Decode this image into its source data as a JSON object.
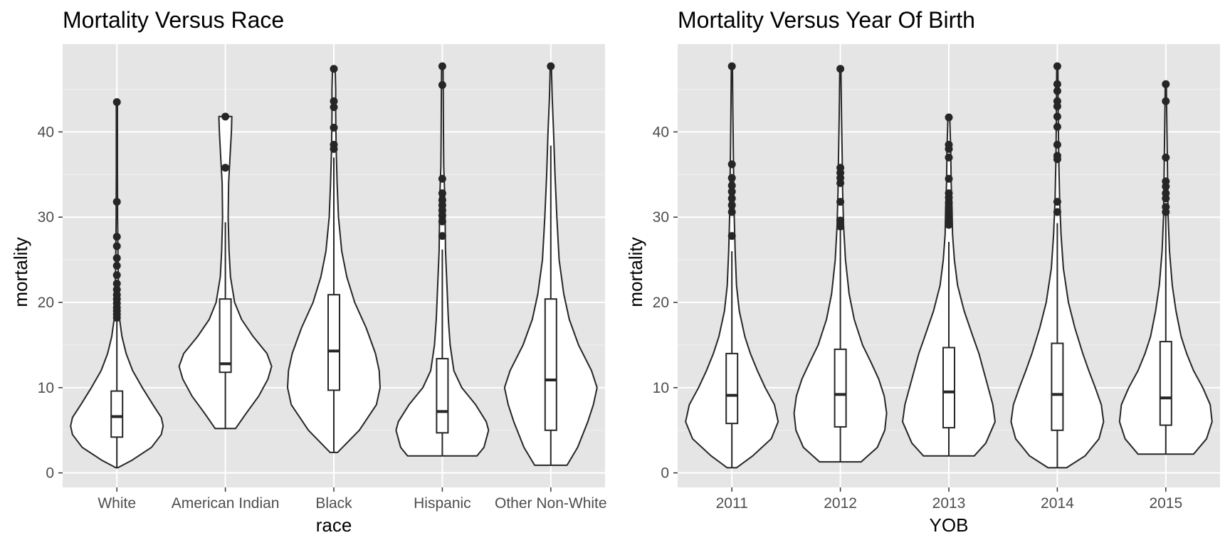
{
  "colors": {
    "panel_background": "#e5e5e5",
    "grid_major": "#ffffff",
    "grid_minor": "#f0f0f0",
    "violin_fill": "#ffffff",
    "outline": "#262626",
    "outlier": "#262626",
    "tick_text": "#4d4d4d",
    "title_text": "#000000"
  },
  "chart_data": [
    {
      "type": "violin",
      "title": "Mortality Versus Race",
      "xlabel": "race",
      "ylabel": "mortality",
      "ylim": [
        -1.7,
        50.3
      ],
      "y_ticks": [
        0,
        10,
        20,
        30,
        40
      ],
      "grid": true,
      "categories": [
        "White",
        "American Indian",
        "Black",
        "Hispanic",
        "Other Non-White"
      ],
      "groups": [
        {
          "category": "White",
          "min": 0.6,
          "max": 43.5,
          "box": {
            "q1": 4.2,
            "median": 6.6,
            "q3": 9.6,
            "whisker_low": 0.6,
            "whisker_high": 18
          },
          "outliers": [
            18.2,
            18.6,
            19.0,
            19.4,
            19.9,
            20.4,
            20.9,
            21.5,
            22.2,
            23.2,
            24.3,
            25.2,
            26.6,
            27.7,
            31.8,
            43.5
          ],
          "density": [
            [
              0.6,
              0.02
            ],
            [
              1.5,
              0.33
            ],
            [
              3,
              0.75
            ],
            [
              4.5,
              0.96
            ],
            [
              5.5,
              1.0
            ],
            [
              6.5,
              0.96
            ],
            [
              8,
              0.78
            ],
            [
              10,
              0.55
            ],
            [
              12,
              0.34
            ],
            [
              14,
              0.2
            ],
            [
              16,
              0.11
            ],
            [
              18,
              0.06
            ],
            [
              20,
              0.04
            ],
            [
              25,
              0.025
            ],
            [
              30,
              0.015
            ],
            [
              35,
              0.01
            ],
            [
              40,
              0.005
            ],
            [
              43.5,
              0.003
            ]
          ]
        },
        {
          "category": "American Indian",
          "min": 5.2,
          "max": 41.8,
          "box": {
            "q1": 11.8,
            "median": 12.8,
            "q3": 20.4,
            "whisker_low": 5.2,
            "whisker_high": 29.4
          },
          "outliers": [
            35.8,
            41.8
          ],
          "density": [
            [
              5.2,
              0.22
            ],
            [
              7,
              0.45
            ],
            [
              9,
              0.72
            ],
            [
              11,
              0.92
            ],
            [
              12.5,
              1.0
            ],
            [
              14,
              0.9
            ],
            [
              16,
              0.6
            ],
            [
              18,
              0.35
            ],
            [
              20,
              0.2
            ],
            [
              23,
              0.11
            ],
            [
              26,
              0.08
            ],
            [
              30,
              0.06
            ],
            [
              34,
              0.07
            ],
            [
              37,
              0.1
            ],
            [
              40,
              0.13
            ],
            [
              41.8,
              0.14
            ]
          ]
        },
        {
          "category": "Black",
          "min": 2.4,
          "max": 47.4,
          "box": {
            "q1": 9.7,
            "median": 14.3,
            "q3": 20.9,
            "whisker_low": 2.4,
            "whisker_high": 37
          },
          "outliers": [
            38.0,
            38.5,
            40.5,
            42.9,
            43.6,
            47.4
          ],
          "density": [
            [
              2.4,
              0.08
            ],
            [
              5,
              0.55
            ],
            [
              8,
              0.92
            ],
            [
              10,
              1.0
            ],
            [
              12,
              0.98
            ],
            [
              14,
              0.9
            ],
            [
              17,
              0.7
            ],
            [
              20,
              0.45
            ],
            [
              23,
              0.28
            ],
            [
              26,
              0.17
            ],
            [
              30,
              0.1
            ],
            [
              34,
              0.07
            ],
            [
              38,
              0.05
            ],
            [
              42,
              0.04
            ],
            [
              45,
              0.04
            ],
            [
              47.4,
              0.03
            ]
          ]
        },
        {
          "category": "Hispanic",
          "min": 2.0,
          "max": 47.7,
          "box": {
            "q1": 4.7,
            "median": 7.2,
            "q3": 13.4,
            "whisker_low": 2.0,
            "whisker_high": 26.2
          },
          "outliers": [
            27.8,
            29.5,
            30.2,
            30.8,
            31.4,
            32.0,
            32.8,
            34.5,
            45.5,
            47.7
          ],
          "density": [
            [
              2.0,
              0.75
            ],
            [
              3,
              0.9
            ],
            [
              5,
              1.0
            ],
            [
              6,
              0.95
            ],
            [
              8,
              0.72
            ],
            [
              10,
              0.42
            ],
            [
              12,
              0.25
            ],
            [
              15,
              0.17
            ],
            [
              18,
              0.13
            ],
            [
              22,
              0.1
            ],
            [
              26,
              0.07
            ],
            [
              30,
              0.06
            ],
            [
              33,
              0.05
            ],
            [
              36,
              0.03
            ],
            [
              40,
              0.025
            ],
            [
              45,
              0.02
            ],
            [
              47.7,
              0.015
            ]
          ]
        },
        {
          "category": "Other Non-White",
          "min": 0.9,
          "max": 47.7,
          "box": {
            "q1": 5.0,
            "median": 10.9,
            "q3": 20.4,
            "whisker_low": 0.9,
            "whisker_high": 38.4
          },
          "outliers": [
            47.7
          ],
          "density": [
            [
              0.9,
              0.35
            ],
            [
              3,
              0.58
            ],
            [
              6,
              0.8
            ],
            [
              8,
              0.92
            ],
            [
              10,
              1.0
            ],
            [
              12,
              0.88
            ],
            [
              15,
              0.6
            ],
            [
              18,
              0.4
            ],
            [
              21,
              0.28
            ],
            [
              25,
              0.18
            ],
            [
              30,
              0.13
            ],
            [
              35,
              0.09
            ],
            [
              40,
              0.06
            ],
            [
              44,
              0.03
            ],
            [
              47.7,
              0.01
            ]
          ]
        }
      ]
    },
    {
      "type": "violin",
      "title": "Mortality Versus Year Of Birth",
      "xlabel": "YOB",
      "ylabel": "mortality",
      "ylim": [
        -1.7,
        50.3
      ],
      "y_ticks": [
        0,
        10,
        20,
        30,
        40
      ],
      "grid": true,
      "categories": [
        "2011",
        "2012",
        "2013",
        "2014",
        "2015"
      ],
      "groups": [
        {
          "category": "2011",
          "min": 0.6,
          "max": 47.7,
          "box": {
            "q1": 5.8,
            "median": 9.1,
            "q3": 14.0,
            "whisker_low": 0.6,
            "whisker_high": 26
          },
          "outliers": [
            27.8,
            30.6,
            31.4,
            32.2,
            33.0,
            33.7,
            34.6,
            36.2,
            47.7
          ],
          "density": [
            [
              0.6,
              0.1
            ],
            [
              2,
              0.45
            ],
            [
              4,
              0.85
            ],
            [
              6,
              1.0
            ],
            [
              8,
              0.92
            ],
            [
              10,
              0.72
            ],
            [
              12,
              0.55
            ],
            [
              14,
              0.4
            ],
            [
              16,
              0.28
            ],
            [
              19,
              0.16
            ],
            [
              22,
              0.1
            ],
            [
              26,
              0.07
            ],
            [
              30,
              0.05
            ],
            [
              34,
              0.04
            ],
            [
              38,
              0.03
            ],
            [
              43,
              0.02
            ],
            [
              47.7,
              0.01
            ]
          ]
        },
        {
          "category": "2012",
          "min": 1.3,
          "max": 47.4,
          "box": {
            "q1": 5.4,
            "median": 9.2,
            "q3": 14.5,
            "whisker_low": 1.3,
            "whisker_high": 28.7
          },
          "outliers": [
            28.9,
            29.6,
            31.8,
            34.0,
            34.6,
            35.2,
            35.8,
            47.4
          ],
          "density": [
            [
              1.3,
              0.45
            ],
            [
              3,
              0.8
            ],
            [
              5,
              0.96
            ],
            [
              7,
              1.0
            ],
            [
              9,
              0.95
            ],
            [
              11,
              0.83
            ],
            [
              13,
              0.66
            ],
            [
              15,
              0.48
            ],
            [
              18,
              0.3
            ],
            [
              21,
              0.19
            ],
            [
              25,
              0.11
            ],
            [
              29,
              0.07
            ],
            [
              33,
              0.05
            ],
            [
              37,
              0.04
            ],
            [
              42,
              0.025
            ],
            [
              47.4,
              0.01
            ]
          ]
        },
        {
          "category": "2013",
          "min": 2.0,
          "max": 41.7,
          "box": {
            "q1": 5.3,
            "median": 9.5,
            "q3": 14.7,
            "whisker_low": 2.0,
            "whisker_high": 27.1
          },
          "outliers": [
            29.1,
            29.5,
            30.0,
            30.6,
            31.1,
            31.7,
            32.3,
            32.8,
            34.5,
            37.0,
            38.0,
            38.5,
            41.7
          ],
          "density": [
            [
              2.0,
              0.55
            ],
            [
              3.5,
              0.8
            ],
            [
              6,
              1.0
            ],
            [
              8,
              0.95
            ],
            [
              10,
              0.85
            ],
            [
              12,
              0.75
            ],
            [
              14,
              0.65
            ],
            [
              16,
              0.52
            ],
            [
              19,
              0.33
            ],
            [
              22,
              0.19
            ],
            [
              25,
              0.12
            ],
            [
              28,
              0.08
            ],
            [
              31,
              0.07
            ],
            [
              34,
              0.05
            ],
            [
              38,
              0.04
            ],
            [
              41.7,
              0.02
            ]
          ]
        },
        {
          "category": "2014",
          "min": 0.6,
          "max": 47.7,
          "box": {
            "q1": 5.0,
            "median": 9.2,
            "q3": 15.2,
            "whisker_low": 0.6,
            "whisker_high": 29.3
          },
          "outliers": [
            30.6,
            31.8,
            36.8,
            37.2,
            38.5,
            40.6,
            41.8,
            43.0,
            43.6,
            44.8,
            45.6,
            47.7
          ],
          "density": [
            [
              0.6,
              0.2
            ],
            [
              2,
              0.6
            ],
            [
              4,
              0.9
            ],
            [
              6,
              1.0
            ],
            [
              8,
              0.95
            ],
            [
              10,
              0.82
            ],
            [
              12,
              0.68
            ],
            [
              14,
              0.55
            ],
            [
              17,
              0.38
            ],
            [
              20,
              0.24
            ],
            [
              24,
              0.13
            ],
            [
              28,
              0.08
            ],
            [
              32,
              0.05
            ],
            [
              37,
              0.03
            ],
            [
              42,
              0.02
            ],
            [
              47.7,
              0.01
            ]
          ]
        },
        {
          "category": "2015",
          "min": 2.2,
          "max": 45.6,
          "box": {
            "q1": 5.6,
            "median": 8.8,
            "q3": 15.4,
            "whisker_low": 2.2,
            "whisker_high": 30.2
          },
          "outliers": [
            30.6,
            31.2,
            32.2,
            32.8,
            33.6,
            34.2,
            37.0,
            43.6,
            45.6
          ],
          "density": [
            [
              2.2,
              0.6
            ],
            [
              4,
              0.88
            ],
            [
              6,
              1.0
            ],
            [
              8,
              0.96
            ],
            [
              10,
              0.8
            ],
            [
              12,
              0.6
            ],
            [
              14,
              0.45
            ],
            [
              16,
              0.33
            ],
            [
              19,
              0.22
            ],
            [
              22,
              0.14
            ],
            [
              26,
              0.08
            ],
            [
              30,
              0.05
            ],
            [
              34,
              0.04
            ],
            [
              38,
              0.03
            ],
            [
              42,
              0.02
            ],
            [
              45.6,
              0.01
            ]
          ]
        }
      ]
    }
  ]
}
